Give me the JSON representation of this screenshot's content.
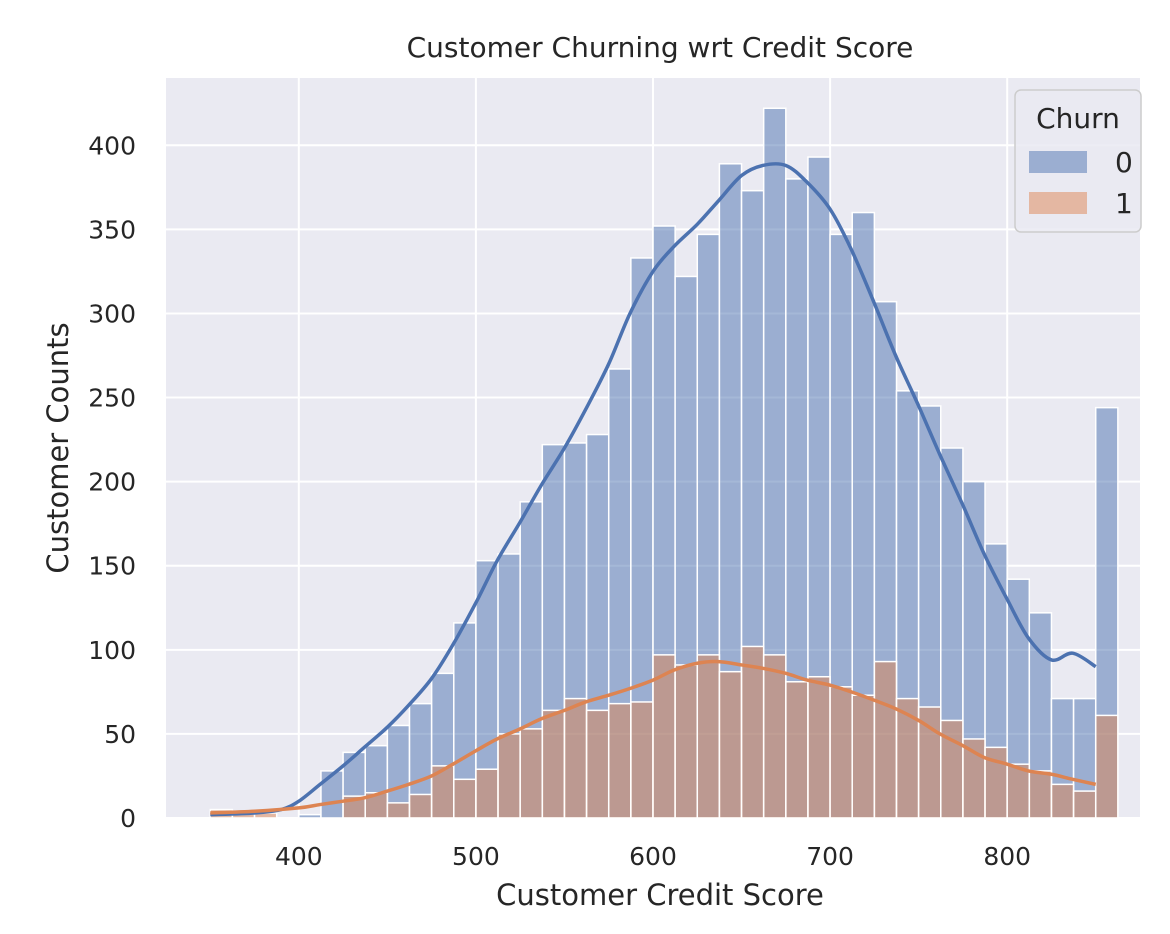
{
  "chart_data": {
    "type": "histogram",
    "title": "Customer Churning wrt Credit Score",
    "xlabel": "Customer Credit Score",
    "ylabel": "Customer Counts",
    "xlim": [
      325,
      875
    ],
    "ylim": [
      0,
      440
    ],
    "xticks": [
      400,
      500,
      600,
      700,
      800
    ],
    "yticks": [
      0,
      50,
      100,
      150,
      200,
      250,
      300,
      350,
      400
    ],
    "grid": true,
    "legend": {
      "title": "Churn",
      "placement": "top-right"
    },
    "bin_start": 350,
    "bin_width": 12.5,
    "series": [
      {
        "name": "0",
        "color": "#4c72b0",
        "values": [
          0,
          0,
          0,
          0,
          2,
          28,
          39,
          43,
          55,
          68,
          86,
          116,
          153,
          157,
          188,
          222,
          223,
          228,
          267,
          333,
          352,
          322,
          347,
          389,
          373,
          422,
          380,
          393,
          347,
          360,
          307,
          254,
          245,
          220,
          200,
          163,
          142,
          122,
          71,
          71,
          244
        ],
        "kde": [
          [
            350,
            2
          ],
          [
            375,
            3
          ],
          [
            390,
            5
          ],
          [
            400,
            10
          ],
          [
            412,
            20
          ],
          [
            425,
            31
          ],
          [
            437,
            42
          ],
          [
            450,
            54
          ],
          [
            462,
            67
          ],
          [
            475,
            83
          ],
          [
            487,
            103
          ],
          [
            500,
            128
          ],
          [
            512,
            153
          ],
          [
            525,
            176
          ],
          [
            537,
            198
          ],
          [
            550,
            220
          ],
          [
            562,
            243
          ],
          [
            575,
            270
          ],
          [
            587,
            300
          ],
          [
            600,
            325
          ],
          [
            612,
            340
          ],
          [
            625,
            353
          ],
          [
            637,
            367
          ],
          [
            650,
            382
          ],
          [
            662,
            388
          ],
          [
            675,
            388
          ],
          [
            687,
            378
          ],
          [
            700,
            362
          ],
          [
            712,
            338
          ],
          [
            725,
            306
          ],
          [
            737,
            275
          ],
          [
            750,
            245
          ],
          [
            762,
            216
          ],
          [
            775,
            186
          ],
          [
            787,
            157
          ],
          [
            800,
            130
          ],
          [
            812,
            107
          ],
          [
            825,
            94
          ],
          [
            837,
            98
          ],
          [
            850,
            90
          ]
        ]
      },
      {
        "name": "1",
        "color": "#dd8452",
        "values": [
          5,
          4,
          3,
          0,
          0,
          0,
          13,
          15,
          9,
          14,
          31,
          23,
          29,
          50,
          53,
          64,
          71,
          64,
          68,
          69,
          97,
          91,
          97,
          87,
          102,
          97,
          81,
          84,
          78,
          73,
          93,
          71,
          66,
          58,
          47,
          42,
          32,
          28,
          20,
          16,
          61
        ],
        "kde": [
          [
            350,
            3
          ],
          [
            375,
            4
          ],
          [
            400,
            6
          ],
          [
            412,
            8
          ],
          [
            425,
            10
          ],
          [
            437,
            12
          ],
          [
            450,
            16
          ],
          [
            462,
            20
          ],
          [
            475,
            25
          ],
          [
            487,
            32
          ],
          [
            500,
            40
          ],
          [
            512,
            47
          ],
          [
            525,
            53
          ],
          [
            537,
            59
          ],
          [
            550,
            64
          ],
          [
            562,
            69
          ],
          [
            575,
            73
          ],
          [
            587,
            77
          ],
          [
            600,
            82
          ],
          [
            612,
            88
          ],
          [
            625,
            92
          ],
          [
            637,
            93
          ],
          [
            650,
            91
          ],
          [
            662,
            89
          ],
          [
            675,
            86
          ],
          [
            687,
            82
          ],
          [
            700,
            79
          ],
          [
            712,
            75
          ],
          [
            725,
            70
          ],
          [
            737,
            65
          ],
          [
            750,
            58
          ],
          [
            762,
            50
          ],
          [
            775,
            43
          ],
          [
            787,
            36
          ],
          [
            800,
            32
          ],
          [
            812,
            28
          ],
          [
            825,
            26
          ],
          [
            837,
            23
          ],
          [
            850,
            20
          ]
        ]
      }
    ]
  }
}
